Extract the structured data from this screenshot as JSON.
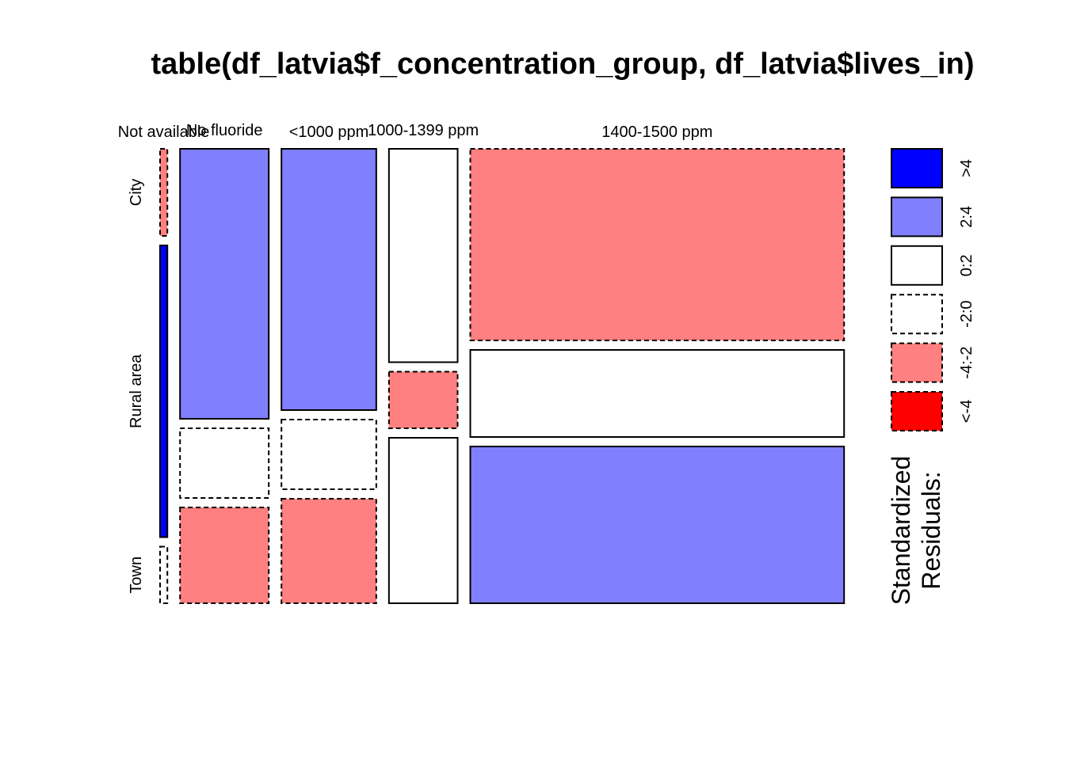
{
  "chart_data": {
    "type": "mosaic",
    "title": "table(df_latvia$f_concentration_group, df_latvia$lives_in)",
    "column_variable_categories": [
      "Not available",
      "No fluoride",
      "<1000 ppm",
      "1000-1399 ppm",
      "1400-1500 ppm"
    ],
    "row_variable_categories": [
      "City",
      "Rural area",
      "Town"
    ],
    "column_proportions": [
      0.012,
      0.146,
      0.156,
      0.113,
      0.615
    ],
    "cells": [
      {
        "column": "Not available",
        "row": "City",
        "proportion": 0.2,
        "residual_class": "-4:-2"
      },
      {
        "column": "Not available",
        "row": "Rural area",
        "proportion": 0.67,
        "residual_class": ">4"
      },
      {
        "column": "Not available",
        "row": "Town",
        "proportion": 0.13,
        "residual_class": "-2:0"
      },
      {
        "column": "No fluoride",
        "row": "City",
        "proportion": 0.62,
        "residual_class": "2:4"
      },
      {
        "column": "No fluoride",
        "row": "Rural area",
        "proportion": 0.16,
        "residual_class": "-2:0"
      },
      {
        "column": "No fluoride",
        "row": "Town",
        "proportion": 0.22,
        "residual_class": "-4:-2"
      },
      {
        "column": "<1000 ppm",
        "row": "City",
        "proportion": 0.6,
        "residual_class": "2:4"
      },
      {
        "column": "<1000 ppm",
        "row": "Rural area",
        "proportion": 0.16,
        "residual_class": "-2:0"
      },
      {
        "column": "<1000 ppm",
        "row": "Town",
        "proportion": 0.24,
        "residual_class": "-4:-2"
      },
      {
        "column": "1000-1399 ppm",
        "row": "City",
        "proportion": 0.49,
        "residual_class": "0:2"
      },
      {
        "column": "1000-1399 ppm",
        "row": "Rural area",
        "proportion": 0.13,
        "residual_class": "-4:-2"
      },
      {
        "column": "1000-1399 ppm",
        "row": "Town",
        "proportion": 0.38,
        "residual_class": "0:2"
      },
      {
        "column": "1400-1500 ppm",
        "row": "City",
        "proportion": 0.44,
        "residual_class": "-4:-2"
      },
      {
        "column": "1400-1500 ppm",
        "row": "Rural area",
        "proportion": 0.2,
        "residual_class": "0:2"
      },
      {
        "column": "1400-1500 ppm",
        "row": "Town",
        "proportion": 0.36,
        "residual_class": "2:4"
      }
    ],
    "legend": {
      "title_lines": [
        "Standardized",
        "Residuals:"
      ],
      "items": [
        {
          "label": ">4",
          "fill": "#0000ff",
          "dashed": false
        },
        {
          "label": "2:4",
          "fill": "#8080ff",
          "dashed": false
        },
        {
          "label": "0:2",
          "fill": "#ffffff",
          "dashed": false
        },
        {
          "label": "-2:0",
          "fill": "#ffffff",
          "dashed": true
        },
        {
          "label": "-4:-2",
          "fill": "#ff8080",
          "dashed": true
        },
        {
          "label": "<-4",
          "fill": "#ff0000",
          "dashed": true
        }
      ]
    }
  }
}
